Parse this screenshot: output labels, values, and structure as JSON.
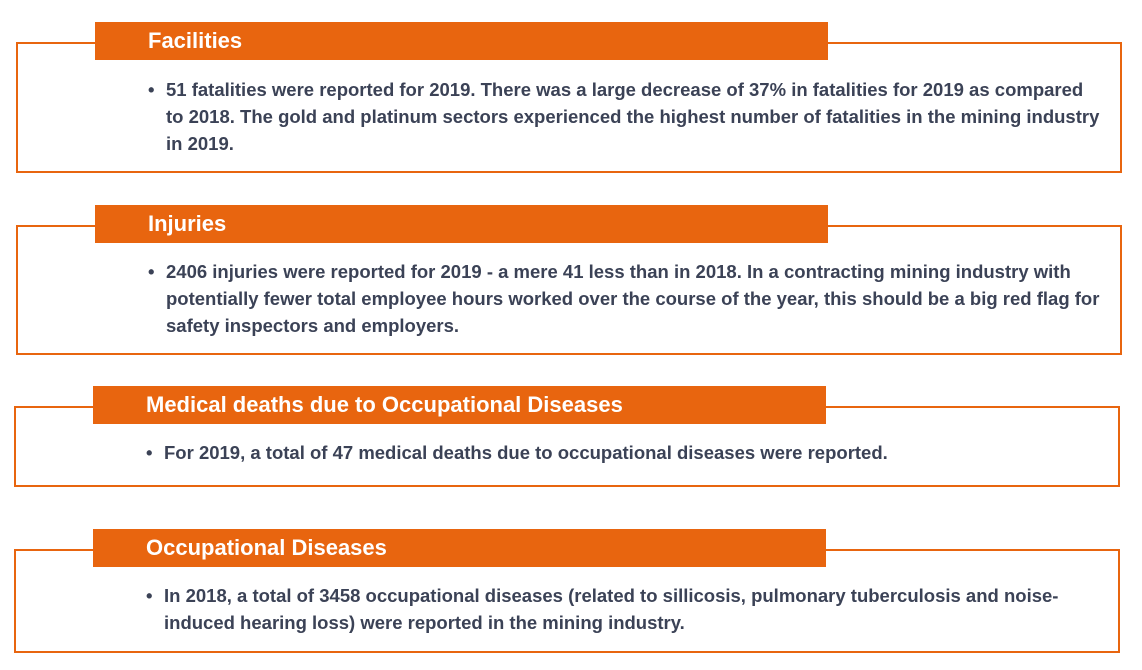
{
  "colors": {
    "accent": "#e8650f",
    "body_text": "#3b4256",
    "header_text": "#ffffff"
  },
  "sections": [
    {
      "title": "Facilities",
      "bullet": "•",
      "text": "51 fatalities were reported for 2019. There was a large decrease of 37%  in fatalities for 2019 as compared to 2018. The gold and platinum sectors experienced the highest number of fatalities in the mining industry in 2019."
    },
    {
      "title": "Injuries",
      "bullet": "•",
      "text": "2406 injuries were reported for 2019 - a mere 41 less than in 2018. In a contracting mining industry with potentially fewer total employee hours worked over the course of the year, this should be a big red flag for safety inspectors and employers."
    },
    {
      "title": "Medical deaths due to Occupational Diseases",
      "bullet": "•",
      "text": "For 2019, a total of 47 medical deaths due to occupational diseases were reported."
    },
    {
      "title": "Occupational Diseases",
      "bullet": "•",
      "text": "In 2018, a total of 3458 occupational diseases (related to sillicosis, pulmonary tuberculosis and noise-induced hearing loss) were reported in the mining industry."
    }
  ]
}
